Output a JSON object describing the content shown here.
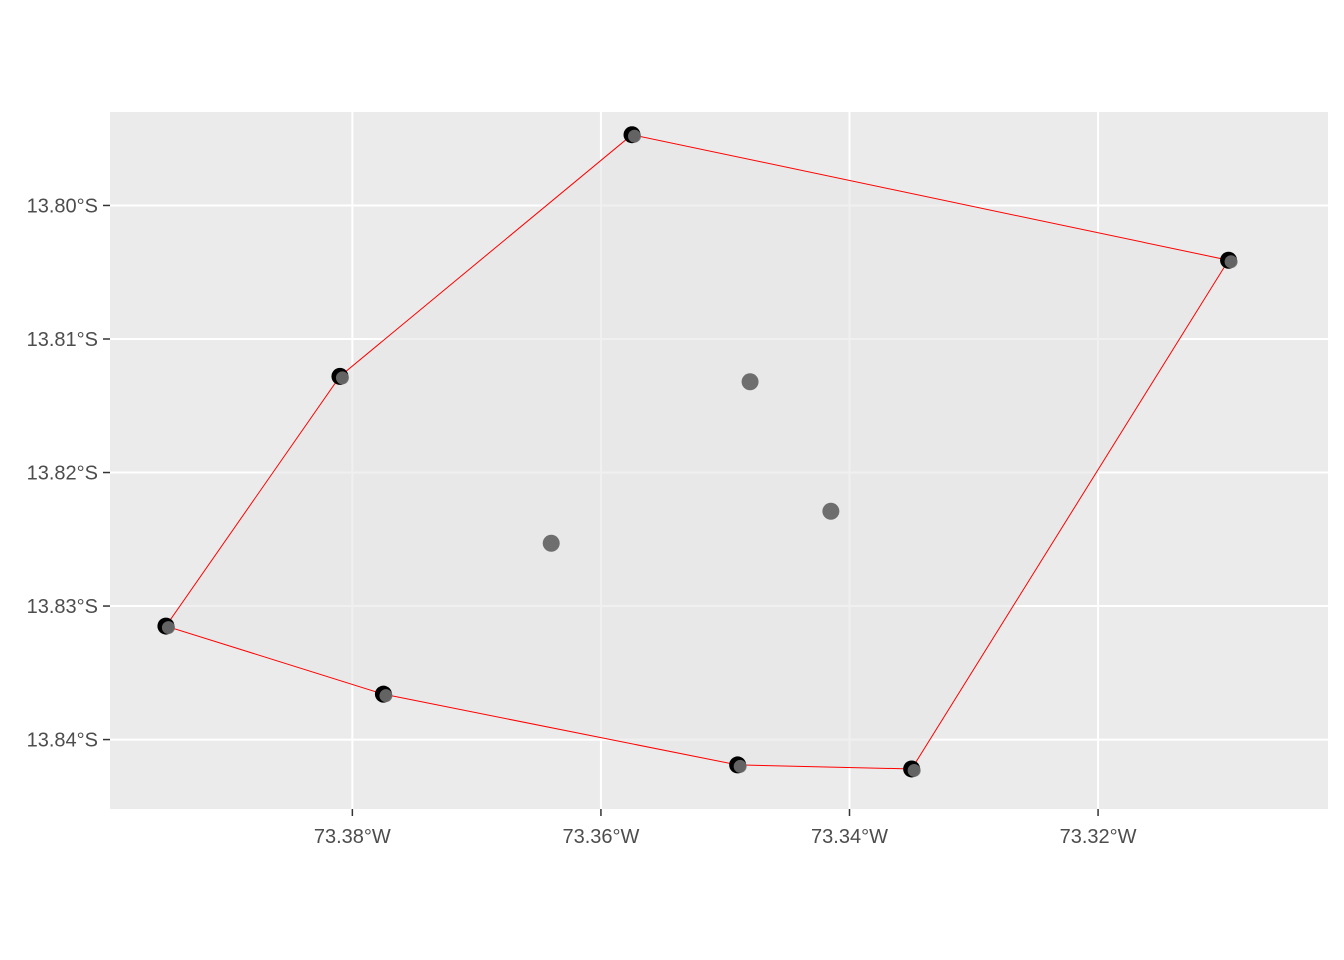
{
  "chart_data": {
    "type": "scatter",
    "title": "",
    "xlabel": "",
    "ylabel": "",
    "grid": true,
    "legend": "none",
    "xlim": [
      -73.3995,
      -73.3015
    ],
    "ylim": [
      -13.8452,
      -13.793
    ],
    "x_ticks": [
      {
        "value": -73.38,
        "label": "73.38°W"
      },
      {
        "value": -73.36,
        "label": "73.36°W"
      },
      {
        "value": -73.34,
        "label": "73.34°W"
      },
      {
        "value": -73.32,
        "label": "73.32°W"
      }
    ],
    "y_ticks": [
      {
        "value": -13.8,
        "label": "13.80°S"
      },
      {
        "value": -13.81,
        "label": "13.81°S"
      },
      {
        "value": -13.82,
        "label": "13.82°S"
      },
      {
        "value": -13.83,
        "label": "13.83°S"
      },
      {
        "value": -13.84,
        "label": "13.84°S"
      }
    ],
    "points": [
      {
        "lon": -73.3575,
        "lat": -13.7947
      },
      {
        "lon": -73.3095,
        "lat": -13.8041
      },
      {
        "lon": -73.381,
        "lat": -13.8128
      },
      {
        "lon": -73.395,
        "lat": -13.8315
      },
      {
        "lon": -73.3775,
        "lat": -13.8366
      },
      {
        "lon": -73.349,
        "lat": -13.8419
      },
      {
        "lon": -73.335,
        "lat": -13.8422
      },
      {
        "lon": -73.348,
        "lat": -13.8132
      },
      {
        "lon": -73.3415,
        "lat": -13.8229
      },
      {
        "lon": -73.364,
        "lat": -13.8253
      }
    ],
    "hull": [
      {
        "lon": -73.3575,
        "lat": -13.7947
      },
      {
        "lon": -73.3095,
        "lat": -13.8041
      },
      {
        "lon": -73.335,
        "lat": -13.8422
      },
      {
        "lon": -73.349,
        "lat": -13.8419
      },
      {
        "lon": -73.3775,
        "lat": -13.8366
      },
      {
        "lon": -73.395,
        "lat": -13.8315
      },
      {
        "lon": -73.381,
        "lat": -13.8128
      }
    ],
    "colors": {
      "panel": "#ebebeb",
      "grid": "#ffffff",
      "hull_stroke": "#ff0000",
      "hull_fill": "#e6e6e6",
      "point_outer": "#000000",
      "point_inner": "#6e6e6e"
    }
  }
}
